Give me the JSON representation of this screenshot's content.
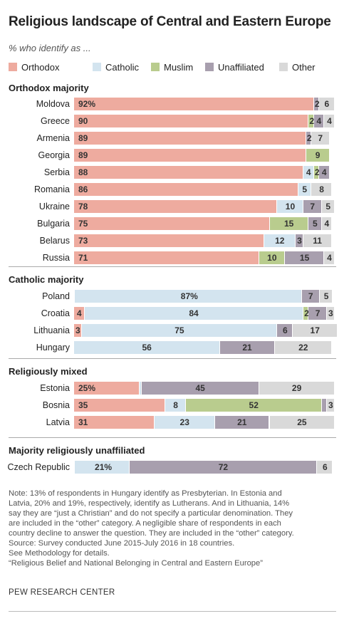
{
  "chart_data": {
    "type": "bar",
    "title": "Religious landscape of Central and Eastern Europe",
    "subtitle": "% who identify as ...",
    "xlim": [
      0,
      100
    ],
    "legend": [
      {
        "key": "orthodox",
        "label": "Orthodox",
        "color": "#eeab9f"
      },
      {
        "key": "catholic",
        "label": "Catholic",
        "color": "#d3e4ef"
      },
      {
        "key": "muslim",
        "label": "Muslim",
        "color": "#b9cc8e"
      },
      {
        "key": "unaffiliated",
        "label": "Unaffiliated",
        "color": "#a89fae"
      },
      {
        "key": "other",
        "label": "Other",
        "color": "#d9d9d9"
      }
    ],
    "groups": [
      {
        "title": "Orthodox majority",
        "rows": [
          {
            "country": "Moldova",
            "segments": [
              {
                "key": "orthodox",
                "value": 92,
                "label": "92%"
              },
              {
                "key": "unaffiliated",
                "value": 2,
                "label": "2"
              },
              {
                "key": "other",
                "value": 6,
                "label": "6"
              }
            ]
          },
          {
            "country": "Greece",
            "segments": [
              {
                "key": "orthodox",
                "value": 90,
                "label": "90"
              },
              {
                "key": "muslim",
                "value": 2,
                "label": "2"
              },
              {
                "key": "unaffiliated",
                "value": 4,
                "label": "4"
              },
              {
                "key": "other",
                "value": 4,
                "label": "4"
              }
            ]
          },
          {
            "country": "Armenia",
            "segments": [
              {
                "key": "orthodox",
                "value": 89,
                "label": "89"
              },
              {
                "key": "unaffiliated",
                "value": 2,
                "label": "2"
              },
              {
                "key": "other",
                "value": 7,
                "label": "7"
              }
            ]
          },
          {
            "country": "Georgia",
            "segments": [
              {
                "key": "orthodox",
                "value": 89,
                "label": "89"
              },
              {
                "key": "muslim",
                "value": 9,
                "label": "9"
              }
            ]
          },
          {
            "country": "Serbia",
            "segments": [
              {
                "key": "orthodox",
                "value": 88,
                "label": "88"
              },
              {
                "key": "catholic",
                "value": 4,
                "label": "4"
              },
              {
                "key": "muslim",
                "value": 2,
                "label": "2"
              },
              {
                "key": "unaffiliated",
                "value": 4,
                "label": "4"
              }
            ]
          },
          {
            "country": "Romania",
            "segments": [
              {
                "key": "orthodox",
                "value": 86,
                "label": "86"
              },
              {
                "key": "catholic",
                "value": 5,
                "label": "5"
              },
              {
                "key": "other",
                "value": 8,
                "label": "8"
              }
            ]
          },
          {
            "country": "Ukraine",
            "segments": [
              {
                "key": "orthodox",
                "value": 78,
                "label": "78"
              },
              {
                "key": "catholic",
                "value": 10,
                "label": "10"
              },
              {
                "key": "unaffiliated",
                "value": 7,
                "label": "7"
              },
              {
                "key": "other",
                "value": 5,
                "label": "5"
              }
            ]
          },
          {
            "country": "Bulgaria",
            "segments": [
              {
                "key": "orthodox",
                "value": 75,
                "label": "75"
              },
              {
                "key": "muslim",
                "value": 15,
                "label": "15"
              },
              {
                "key": "unaffiliated",
                "value": 5,
                "label": "5"
              },
              {
                "key": "other",
                "value": 4,
                "label": "4"
              }
            ]
          },
          {
            "country": "Belarus",
            "segments": [
              {
                "key": "orthodox",
                "value": 73,
                "label": "73"
              },
              {
                "key": "catholic",
                "value": 12,
                "label": "12"
              },
              {
                "key": "unaffiliated",
                "value": 3,
                "label": "3"
              },
              {
                "key": "other",
                "value": 11,
                "label": "11"
              }
            ]
          },
          {
            "country": "Russia",
            "segments": [
              {
                "key": "orthodox",
                "value": 71,
                "label": "71"
              },
              {
                "key": "muslim",
                "value": 10,
                "label": "10"
              },
              {
                "key": "unaffiliated",
                "value": 15,
                "label": "15"
              },
              {
                "key": "other",
                "value": 4,
                "label": "4"
              }
            ]
          }
        ]
      },
      {
        "title": "Catholic majority",
        "rows": [
          {
            "country": "Poland",
            "segments": [
              {
                "key": "orthodox",
                "value": 0.3,
                "label": ""
              },
              {
                "key": "catholic",
                "value": 87,
                "label": "87%"
              },
              {
                "key": "unaffiliated",
                "value": 7,
                "label": "7"
              },
              {
                "key": "other",
                "value": 5,
                "label": "5"
              }
            ]
          },
          {
            "country": "Croatia",
            "segments": [
              {
                "key": "orthodox",
                "value": 4,
                "label": "4"
              },
              {
                "key": "catholic",
                "value": 84,
                "label": "84"
              },
              {
                "key": "muslim",
                "value": 2,
                "label": "2"
              },
              {
                "key": "unaffiliated",
                "value": 7,
                "label": "7"
              },
              {
                "key": "other",
                "value": 3,
                "label": "3"
              }
            ]
          },
          {
            "country": "Lithuania",
            "segments": [
              {
                "key": "orthodox",
                "value": 3,
                "label": "3"
              },
              {
                "key": "catholic",
                "value": 75,
                "label": "75"
              },
              {
                "key": "unaffiliated",
                "value": 6,
                "label": "6"
              },
              {
                "key": "other",
                "value": 17,
                "label": "17"
              }
            ]
          },
          {
            "country": "Hungary",
            "segments": [
              {
                "key": "catholic",
                "value": 56,
                "label": "56"
              },
              {
                "key": "unaffiliated",
                "value": 21,
                "label": "21"
              },
              {
                "key": "other",
                "value": 22,
                "label": "22"
              }
            ]
          }
        ]
      },
      {
        "title": "Religiously mixed",
        "rows": [
          {
            "country": "Estonia",
            "segments": [
              {
                "key": "orthodox",
                "value": 25,
                "label": "25%"
              },
              {
                "key": "catholic",
                "value": 1,
                "label": ""
              },
              {
                "key": "unaffiliated",
                "value": 45,
                "label": "45"
              },
              {
                "key": "other",
                "value": 29,
                "label": "29"
              }
            ]
          },
          {
            "country": "Bosnia",
            "segments": [
              {
                "key": "orthodox",
                "value": 35,
                "label": "35"
              },
              {
                "key": "catholic",
                "value": 8,
                "label": "8"
              },
              {
                "key": "muslim",
                "value": 52,
                "label": "52"
              },
              {
                "key": "unaffiliated",
                "value": 2,
                "label": ""
              },
              {
                "key": "other",
                "value": 3,
                "label": "3"
              }
            ]
          },
          {
            "country": "Latvia",
            "segments": [
              {
                "key": "orthodox",
                "value": 31,
                "label": "31"
              },
              {
                "key": "catholic",
                "value": 23,
                "label": "23"
              },
              {
                "key": "unaffiliated",
                "value": 21,
                "label": "21"
              },
              {
                "key": "other",
                "value": 25,
                "label": "25"
              }
            ]
          }
        ]
      },
      {
        "title": "Majority religiously unaffiliated",
        "rows": [
          {
            "country": "Czech Republic",
            "segments": [
              {
                "key": "orthodox",
                "value": 0.3,
                "label": ""
              },
              {
                "key": "catholic",
                "value": 21,
                "label": "21%"
              },
              {
                "key": "unaffiliated",
                "value": 72,
                "label": "72"
              },
              {
                "key": "other",
                "value": 6,
                "label": "6"
              }
            ]
          }
        ]
      }
    ]
  },
  "notes": [
    "Note: 13% of respondents in Hungary identify as Presbyterian. In Estonia and",
    "Latvia, 20% and 19%, respectively, identify as Lutherans. And in Lithuania, 14%",
    "say they are “just a Christian” and do not specify a particular denomination. They",
    "are included in the “other” category. A negligible share of respondents in each",
    "country decline to answer the question. They are included in the “other” category.",
    "Source: Survey conducted June 2015-July 2016 in 18 countries.",
    "See Methodology for details.",
    "“Religious Belief and National Belonging in Central and Eastern Europe”"
  ],
  "source_org": "PEW RESEARCH CENTER"
}
